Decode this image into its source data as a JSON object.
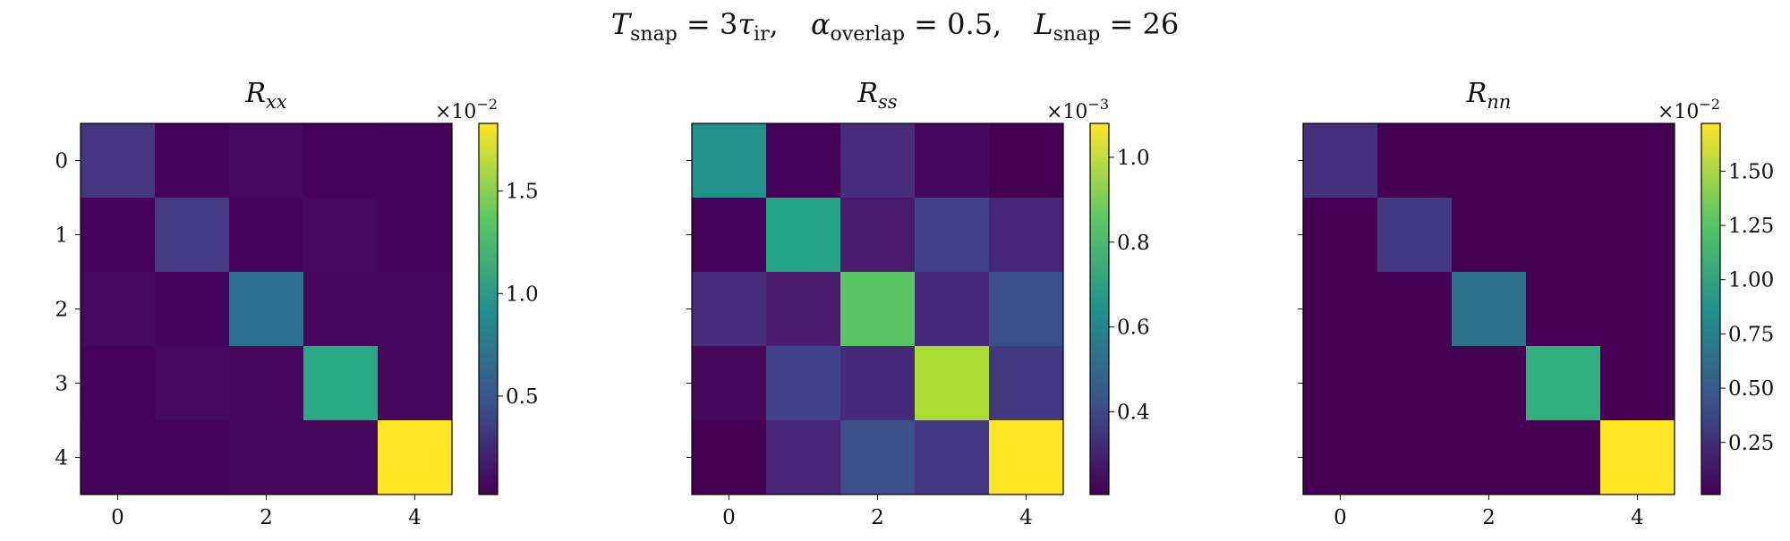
{
  "figure": {
    "suptitle": {
      "t_var": "T",
      "t_sub": "snap",
      "t_rhs_a": " = 3",
      "t_tau": "τ",
      "t_tau_sub": "ir",
      "t_rhs_b": ",",
      "alpha_var": "α",
      "alpha_sub": "overlap",
      "alpha_rhs": " = 0.5,",
      "l_var": "L",
      "l_sub": "snap",
      "l_rhs": " = 26"
    }
  },
  "chart_data": [
    {
      "type": "heatmap",
      "title_main": "R",
      "title_sub": "xx",
      "x_ticks": [
        "0",
        "2",
        "4"
      ],
      "y_ticks": [
        "0",
        "1",
        "2",
        "3",
        "4"
      ],
      "matrix": [
        [
          0.003,
          0.0003,
          0.0006,
          0.0003,
          0.0004
        ],
        [
          0.0003,
          0.0033,
          0.0004,
          0.0006,
          0.0004
        ],
        [
          0.0006,
          0.0004,
          0.0068,
          0.0005,
          0.0005
        ],
        [
          0.0003,
          0.0006,
          0.0005,
          0.0113,
          0.0005
        ],
        [
          0.0004,
          0.0004,
          0.0005,
          0.0005,
          0.0183
        ]
      ],
      "colorbar": {
        "min": 0.0002,
        "max": 0.0183,
        "ticks": [
          0.005,
          0.01,
          0.015
        ],
        "tick_labels": [
          "0.5",
          "1.0",
          "1.5"
        ],
        "multiplier_base": "×10",
        "multiplier_exp": "−2"
      }
    },
    {
      "type": "heatmap",
      "title_main": "R",
      "title_sub": "ss",
      "x_ticks": [
        "0",
        "2",
        "4"
      ],
      "y_ticks": [],
      "matrix": [
        [
          0.00065,
          0.00021,
          0.00032,
          0.00022,
          0.0002
        ],
        [
          0.00021,
          0.00072,
          0.00027,
          0.00038,
          0.0003
        ],
        [
          0.00032,
          0.00027,
          0.00085,
          0.00031,
          0.00042
        ],
        [
          0.00022,
          0.00038,
          0.00031,
          0.00097,
          0.00035
        ],
        [
          0.0002,
          0.0003,
          0.00042,
          0.00035,
          0.00108
        ]
      ],
      "colorbar": {
        "min": 0.000205,
        "max": 0.00108,
        "ticks": [
          0.0004,
          0.0006,
          0.0008,
          0.001
        ],
        "tick_labels": [
          "0.4",
          "0.6",
          "0.8",
          "1.0"
        ],
        "multiplier_base": "×10",
        "multiplier_exp": "−3"
      }
    },
    {
      "type": "heatmap",
      "title_main": "R",
      "title_sub": "nn",
      "x_ticks": [
        "0",
        "2",
        "4"
      ],
      "y_ticks": [],
      "matrix": [
        [
          0.0025,
          0.0001,
          0.0001,
          0.0001,
          0.0001
        ],
        [
          0.0001,
          0.003,
          0.0001,
          0.0001,
          0.0001
        ],
        [
          0.0001,
          0.0001,
          0.0064,
          0.0001,
          0.0001
        ],
        [
          0.0001,
          0.0001,
          0.0001,
          0.011,
          0.0001
        ],
        [
          0.0001,
          0.0001,
          0.0001,
          0.0001,
          0.0172
        ]
      ],
      "colorbar": {
        "min": 0.0001,
        "max": 0.0172,
        "ticks": [
          0.0025,
          0.005,
          0.0075,
          0.01,
          0.0125,
          0.015
        ],
        "tick_labels": [
          "0.25",
          "0.50",
          "0.75",
          "1.00",
          "1.25",
          "1.50"
        ],
        "multiplier_base": "×10",
        "multiplier_exp": "−2"
      }
    }
  ]
}
